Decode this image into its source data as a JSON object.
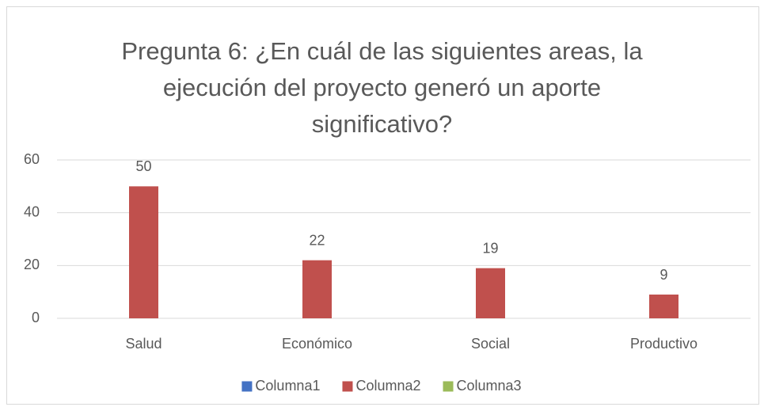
{
  "chart_data": {
    "type": "bar",
    "title": "Pregunta 6: ¿En cuál de las siguientes areas, la ejecución del proyecto generó un aporte significativo?",
    "categories": [
      "Salud",
      "Económico",
      "Social",
      "Productivo"
    ],
    "series": [
      {
        "name": "Columna1",
        "color": "#4472c4",
        "values": [
          null,
          null,
          null,
          null
        ]
      },
      {
        "name": "Columna2",
        "color": "#c0504d",
        "values": [
          50,
          22,
          19,
          9
        ]
      },
      {
        "name": "Columna3",
        "color": "#9bbb59",
        "values": [
          null,
          null,
          null,
          null
        ]
      }
    ],
    "ylim": [
      0,
      60
    ],
    "yticks": [
      0,
      20,
      40,
      60
    ],
    "grid": true,
    "legend": "bottom"
  }
}
